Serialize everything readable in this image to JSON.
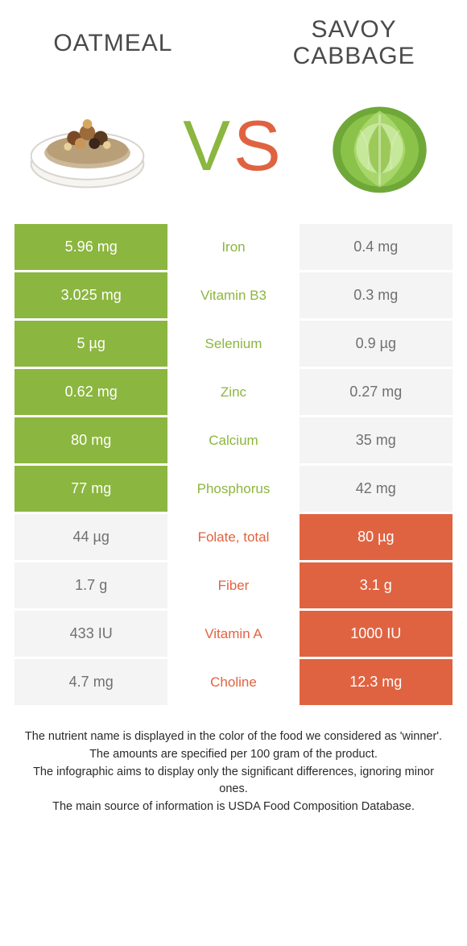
{
  "foodA": {
    "name": "Oatmeal",
    "color": "#8bb63f"
  },
  "foodB": {
    "name": "Savoy cabbage",
    "color": "#e06341"
  },
  "vs": {
    "text": "vs",
    "colorV": "#8bb63f",
    "colorS": "#e06341"
  },
  "loser_cell_bg": "#f4f4f4",
  "loser_cell_text": "#707070",
  "rows": [
    {
      "nutrient": "Iron",
      "a": "5.96 mg",
      "b": "0.4 mg",
      "winner": "a"
    },
    {
      "nutrient": "Vitamin B3",
      "a": "3.025 mg",
      "b": "0.3 mg",
      "winner": "a"
    },
    {
      "nutrient": "Selenium",
      "a": "5 µg",
      "b": "0.9 µg",
      "winner": "a"
    },
    {
      "nutrient": "Zinc",
      "a": "0.62 mg",
      "b": "0.27 mg",
      "winner": "a"
    },
    {
      "nutrient": "Calcium",
      "a": "80 mg",
      "b": "35 mg",
      "winner": "a"
    },
    {
      "nutrient": "Phosphorus",
      "a": "77 mg",
      "b": "42 mg",
      "winner": "a"
    },
    {
      "nutrient": "Folate, total",
      "a": "44 µg",
      "b": "80 µg",
      "winner": "b"
    },
    {
      "nutrient": "Fiber",
      "a": "1.7 g",
      "b": "3.1 g",
      "winner": "b"
    },
    {
      "nutrient": "Vitamin A",
      "a": "433 IU",
      "b": "1000 IU",
      "winner": "b"
    },
    {
      "nutrient": "Choline",
      "a": "4.7 mg",
      "b": "12.3 mg",
      "winner": "b"
    }
  ],
  "footnotes": [
    "The nutrient name is displayed in the color of the food we considered as 'winner'.",
    "The amounts are specified per 100 gram of the product.",
    "The infographic aims to display only the significant differences, ignoring minor ones.",
    "The main source of information is USDA Food Composition Database."
  ]
}
